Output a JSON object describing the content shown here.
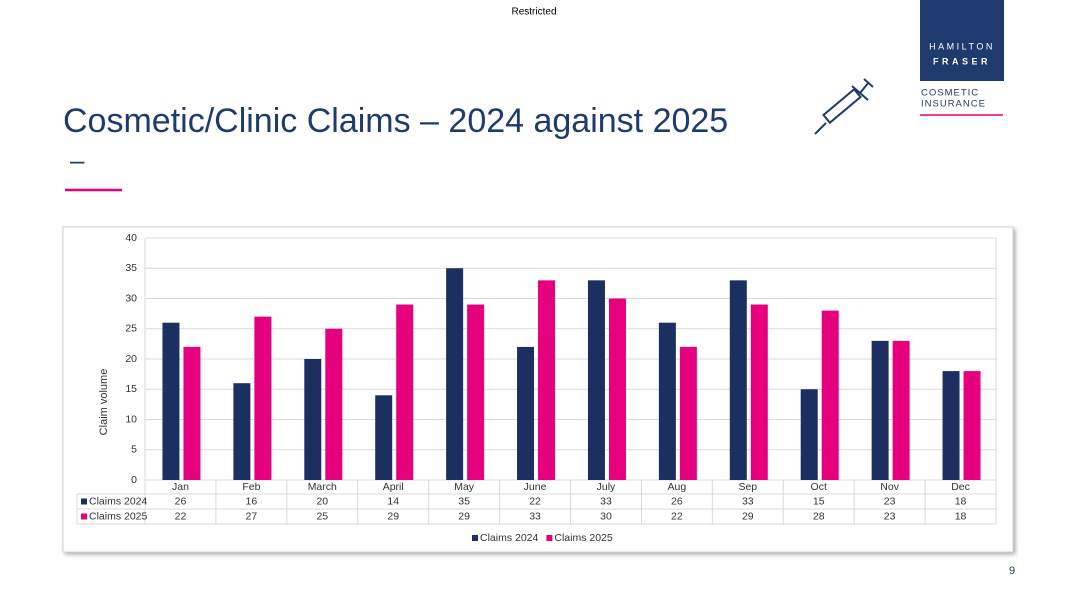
{
  "slide": {
    "classification": "Restricted",
    "logo_line1": "HAMILTON",
    "logo_line2": "FRASER",
    "brand_line1": "COSMETIC",
    "brand_line2": "INSURANCE",
    "title_dash": "–",
    "page_number": "9"
  },
  "chart_data": {
    "type": "bar",
    "title": "Cosmetic/Clinic Claims – 2024 against 2025",
    "y_label": "Claim volume",
    "categories": [
      "Jan",
      "Feb",
      "March",
      "April",
      "May",
      "June",
      "July",
      "Aug",
      "Sep",
      "Oct",
      "Nov",
      "Dec"
    ],
    "series": [
      {
        "name": "Claims 2024",
        "color": "#1b3060",
        "values": [
          26,
          16,
          20,
          14,
          35,
          22,
          33,
          26,
          33,
          15,
          23,
          18
        ]
      },
      {
        "name": "Claims 2025",
        "color": "#e6007e",
        "values": [
          22,
          27,
          25,
          29,
          29,
          33,
          30,
          22,
          29,
          28,
          23,
          18
        ]
      }
    ],
    "ylim": [
      0,
      40
    ],
    "yticks": [
      0,
      5,
      10,
      15,
      20,
      25,
      30,
      35,
      40
    ],
    "grid": true,
    "legend": "bottom"
  }
}
